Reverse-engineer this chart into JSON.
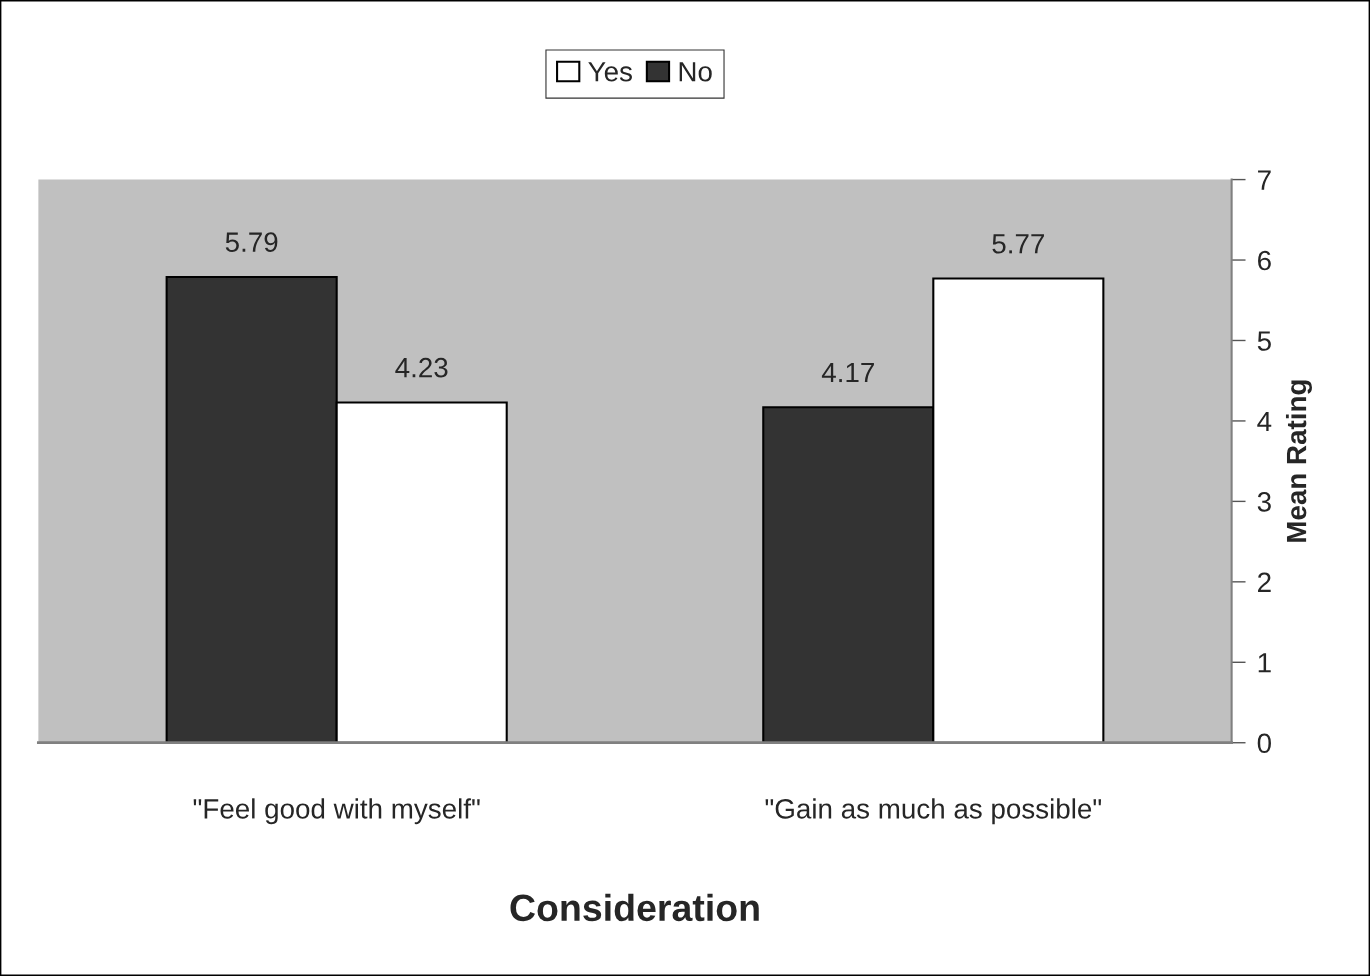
{
  "chart_data": {
    "type": "bar",
    "xlabel": "Consideration",
    "ylabel": "Mean Rating",
    "categories": [
      "\"Feel good with myself\"",
      "\"Gain as much as possible\""
    ],
    "series": [
      {
        "name": "No",
        "color": "#333333",
        "values": [
          5.79,
          4.17
        ]
      },
      {
        "name": "Yes",
        "color": "#ffffff",
        "values": [
          4.23,
          5.77
        ]
      }
    ],
    "ylim": [
      0,
      7
    ],
    "yticks": [
      0,
      1,
      2,
      3,
      4,
      5,
      6,
      7
    ],
    "data_labels": true,
    "legend": "top",
    "grid": false
  }
}
